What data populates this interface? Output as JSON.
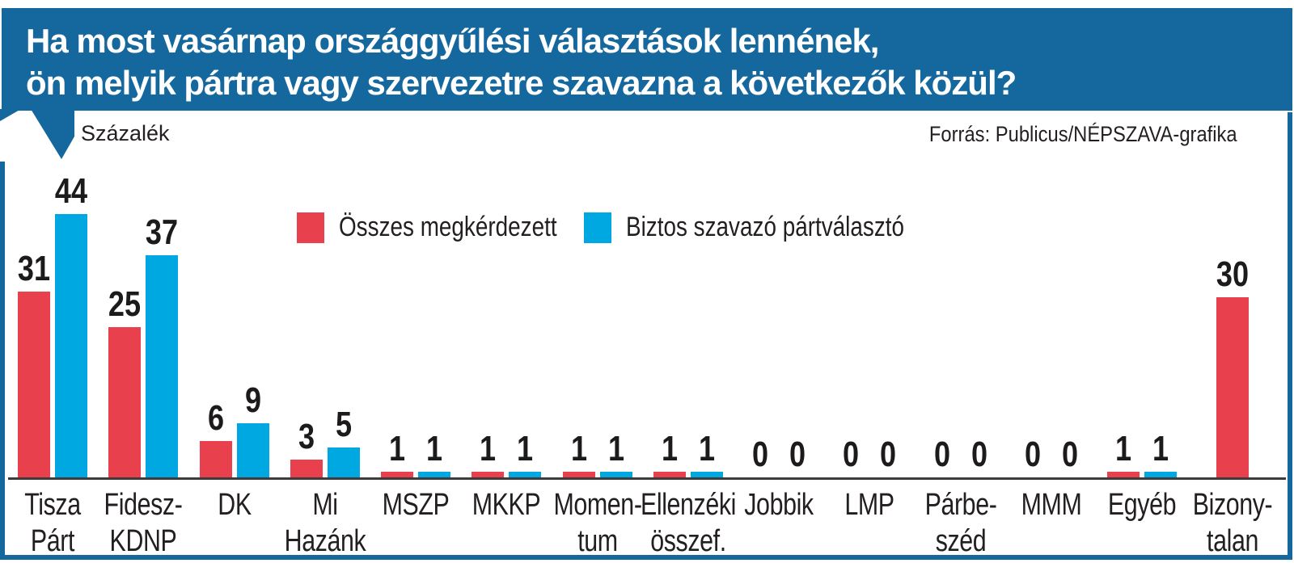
{
  "header": {
    "title_line1": "Ha most vasárnap országgyűlési választások lennének,",
    "title_line2": "ön melyik pártra vagy szervezetre szavazna a következők közül?",
    "bg_color": "#15689e"
  },
  "subtitle": "Százalék",
  "source": "Forrás: Publicus/NÉPSZAVA-grafika",
  "legend": [
    {
      "label": "Összes megkérdezett",
      "color": "#e9404d"
    },
    {
      "label": "Biztos szavazó pártválasztó",
      "color": "#00a8e1"
    }
  ],
  "colors": {
    "frame_blue": "#15689e",
    "bar_red": "#e9404d",
    "bar_blue": "#00a8e1",
    "axis": "#3e3a39",
    "text": "#231f20"
  },
  "chart_data": {
    "type": "bar",
    "title": "Ha most vasárnap országgyűlési választások lennének, ön melyik pártra vagy szervezetre szavazna a következők közül?",
    "ylabel": "Százalék",
    "ylim": [
      0,
      47
    ],
    "grid": false,
    "legend_position": "top-center",
    "categories": [
      "Tisza Párt",
      "Fidesz-KDNP",
      "DK",
      "Mi Hazánk",
      "MSZP",
      "MKKP",
      "Momentum",
      "Ellenzéki összef.",
      "Jobbik",
      "LMP",
      "Párbeszéd",
      "MMM",
      "Egyéb",
      "Bizonytalan"
    ],
    "category_label_lines": [
      [
        "Tisza",
        "Párt"
      ],
      [
        "Fidesz-",
        "KDNP"
      ],
      [
        "DK"
      ],
      [
        "Mi",
        "Hazánk"
      ],
      [
        "MSZP"
      ],
      [
        "MKKP"
      ],
      [
        "Momen-",
        "tum"
      ],
      [
        "Ellenzéki",
        "összef."
      ],
      [
        "Jobbik"
      ],
      [
        "LMP"
      ],
      [
        "Párbe-",
        "széd"
      ],
      [
        "MMM"
      ],
      [
        "Egyéb"
      ],
      [
        "Bizony-",
        "talan"
      ]
    ],
    "series": [
      {
        "name": "Összes megkérdezett",
        "color": "#e9404d",
        "values": [
          31,
          25,
          6,
          3,
          1,
          1,
          1,
          1,
          0,
          0,
          0,
          0,
          1,
          30
        ]
      },
      {
        "name": "Biztos szavazó pártválasztó",
        "color": "#00a8e1",
        "values": [
          44,
          37,
          9,
          5,
          1,
          1,
          1,
          1,
          0,
          0,
          0,
          0,
          1,
          null
        ]
      }
    ]
  }
}
